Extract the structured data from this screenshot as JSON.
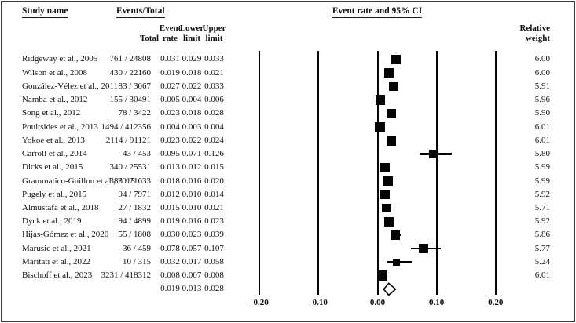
{
  "headers": {
    "study_name": "Study name",
    "events_total": "Events/Total",
    "plot_title": "Event rate and 95% CI",
    "total": "Total",
    "event_rate": [
      "Event",
      "rate"
    ],
    "lower_limit": [
      "Lower",
      "limit"
    ],
    "upper_limit": [
      "Upper",
      "limit"
    ],
    "relative_weight": [
      "Relative",
      "weight"
    ]
  },
  "colors": {
    "marker": "#050505",
    "text": "#111111",
    "frame_border": "#3d3d3d",
    "summary_diamond_fill": "#ffffff"
  },
  "chart_data": {
    "type": "forest",
    "title": "Event rate and 95% CI",
    "xlabel": "Event rate",
    "x_ticks": [
      -0.2,
      -0.1,
      0.0,
      0.1,
      0.2
    ],
    "xlim": [
      -0.25,
      0.27
    ],
    "grid": "vertical-lines-at-ticks",
    "marker": "filled-black-square-sized-by-weight",
    "summary_marker": "open-diamond",
    "studies": [
      {
        "name": "Ridgeway et al., 2005",
        "events_total": "761 / 24808",
        "rate": 0.031,
        "lower": 0.029,
        "upper": 0.033,
        "weight": 6.0
      },
      {
        "name": "Wilson et al., 2008",
        "events_total": "430 / 22160",
        "rate": 0.019,
        "lower": 0.018,
        "upper": 0.021,
        "weight": 6.0
      },
      {
        "name": "González-Vélez et al., 2011",
        "events_total": "83 / 3067",
        "rate": 0.027,
        "lower": 0.022,
        "upper": 0.033,
        "weight": 5.91
      },
      {
        "name": "Namba et al., 2012",
        "events_total": "155 / 30491",
        "rate": 0.005,
        "lower": 0.004,
        "upper": 0.006,
        "weight": 5.96
      },
      {
        "name": "Song et al., 2012",
        "events_total": "78 / 3422",
        "rate": 0.023,
        "lower": 0.018,
        "upper": 0.028,
        "weight": 5.9
      },
      {
        "name": "Poultsides et al., 2013",
        "events_total": "1494 / 412356",
        "rate": 0.004,
        "lower": 0.003,
        "upper": 0.004,
        "weight": 6.01
      },
      {
        "name": "Yokoe et al., 2013",
        "events_total": "2114 / 91121",
        "rate": 0.023,
        "lower": 0.022,
        "upper": 0.024,
        "weight": 6.01
      },
      {
        "name": "Carroll et al., 2014",
        "events_total": "43 / 453",
        "rate": 0.095,
        "lower": 0.071,
        "upper": 0.126,
        "weight": 5.8
      },
      {
        "name": "Dicks et al., 2015",
        "events_total": "340 / 25531",
        "rate": 0.013,
        "lower": 0.012,
        "upper": 0.015,
        "weight": 5.99
      },
      {
        "name": "Grammatico-Guillon et al., 2015",
        "events_total": "383 / 21633",
        "rate": 0.018,
        "lower": 0.016,
        "upper": 0.02,
        "weight": 5.99
      },
      {
        "name": "Pugely et al., 2015",
        "events_total": "94 / 7971",
        "rate": 0.012,
        "lower": 0.01,
        "upper": 0.014,
        "weight": 5.92
      },
      {
        "name": "Almustafa et al., 2018",
        "events_total": "27 / 1832",
        "rate": 0.015,
        "lower": 0.01,
        "upper": 0.021,
        "weight": 5.71
      },
      {
        "name": "Dyck et al., 2019",
        "events_total": "94 / 4899",
        "rate": 0.019,
        "lower": 0.016,
        "upper": 0.023,
        "weight": 5.92
      },
      {
        "name": "Hijas-Gómez et al., 2020",
        "events_total": "55 / 1808",
        "rate": 0.03,
        "lower": 0.023,
        "upper": 0.039,
        "weight": 5.86
      },
      {
        "name": "Marusic et al., 2021",
        "events_total": "36 / 459",
        "rate": 0.078,
        "lower": 0.057,
        "upper": 0.107,
        "weight": 5.77
      },
      {
        "name": "Maritati et al., 2022",
        "events_total": "10 / 315",
        "rate": 0.032,
        "lower": 0.017,
        "upper": 0.058,
        "weight": 5.24
      },
      {
        "name": "Bischoff et al., 2023",
        "events_total": "3231 / 418312",
        "rate": 0.008,
        "lower": 0.007,
        "upper": 0.008,
        "weight": 6.01
      }
    ],
    "summary": {
      "rate": 0.019,
      "lower": 0.013,
      "upper": 0.028
    }
  }
}
